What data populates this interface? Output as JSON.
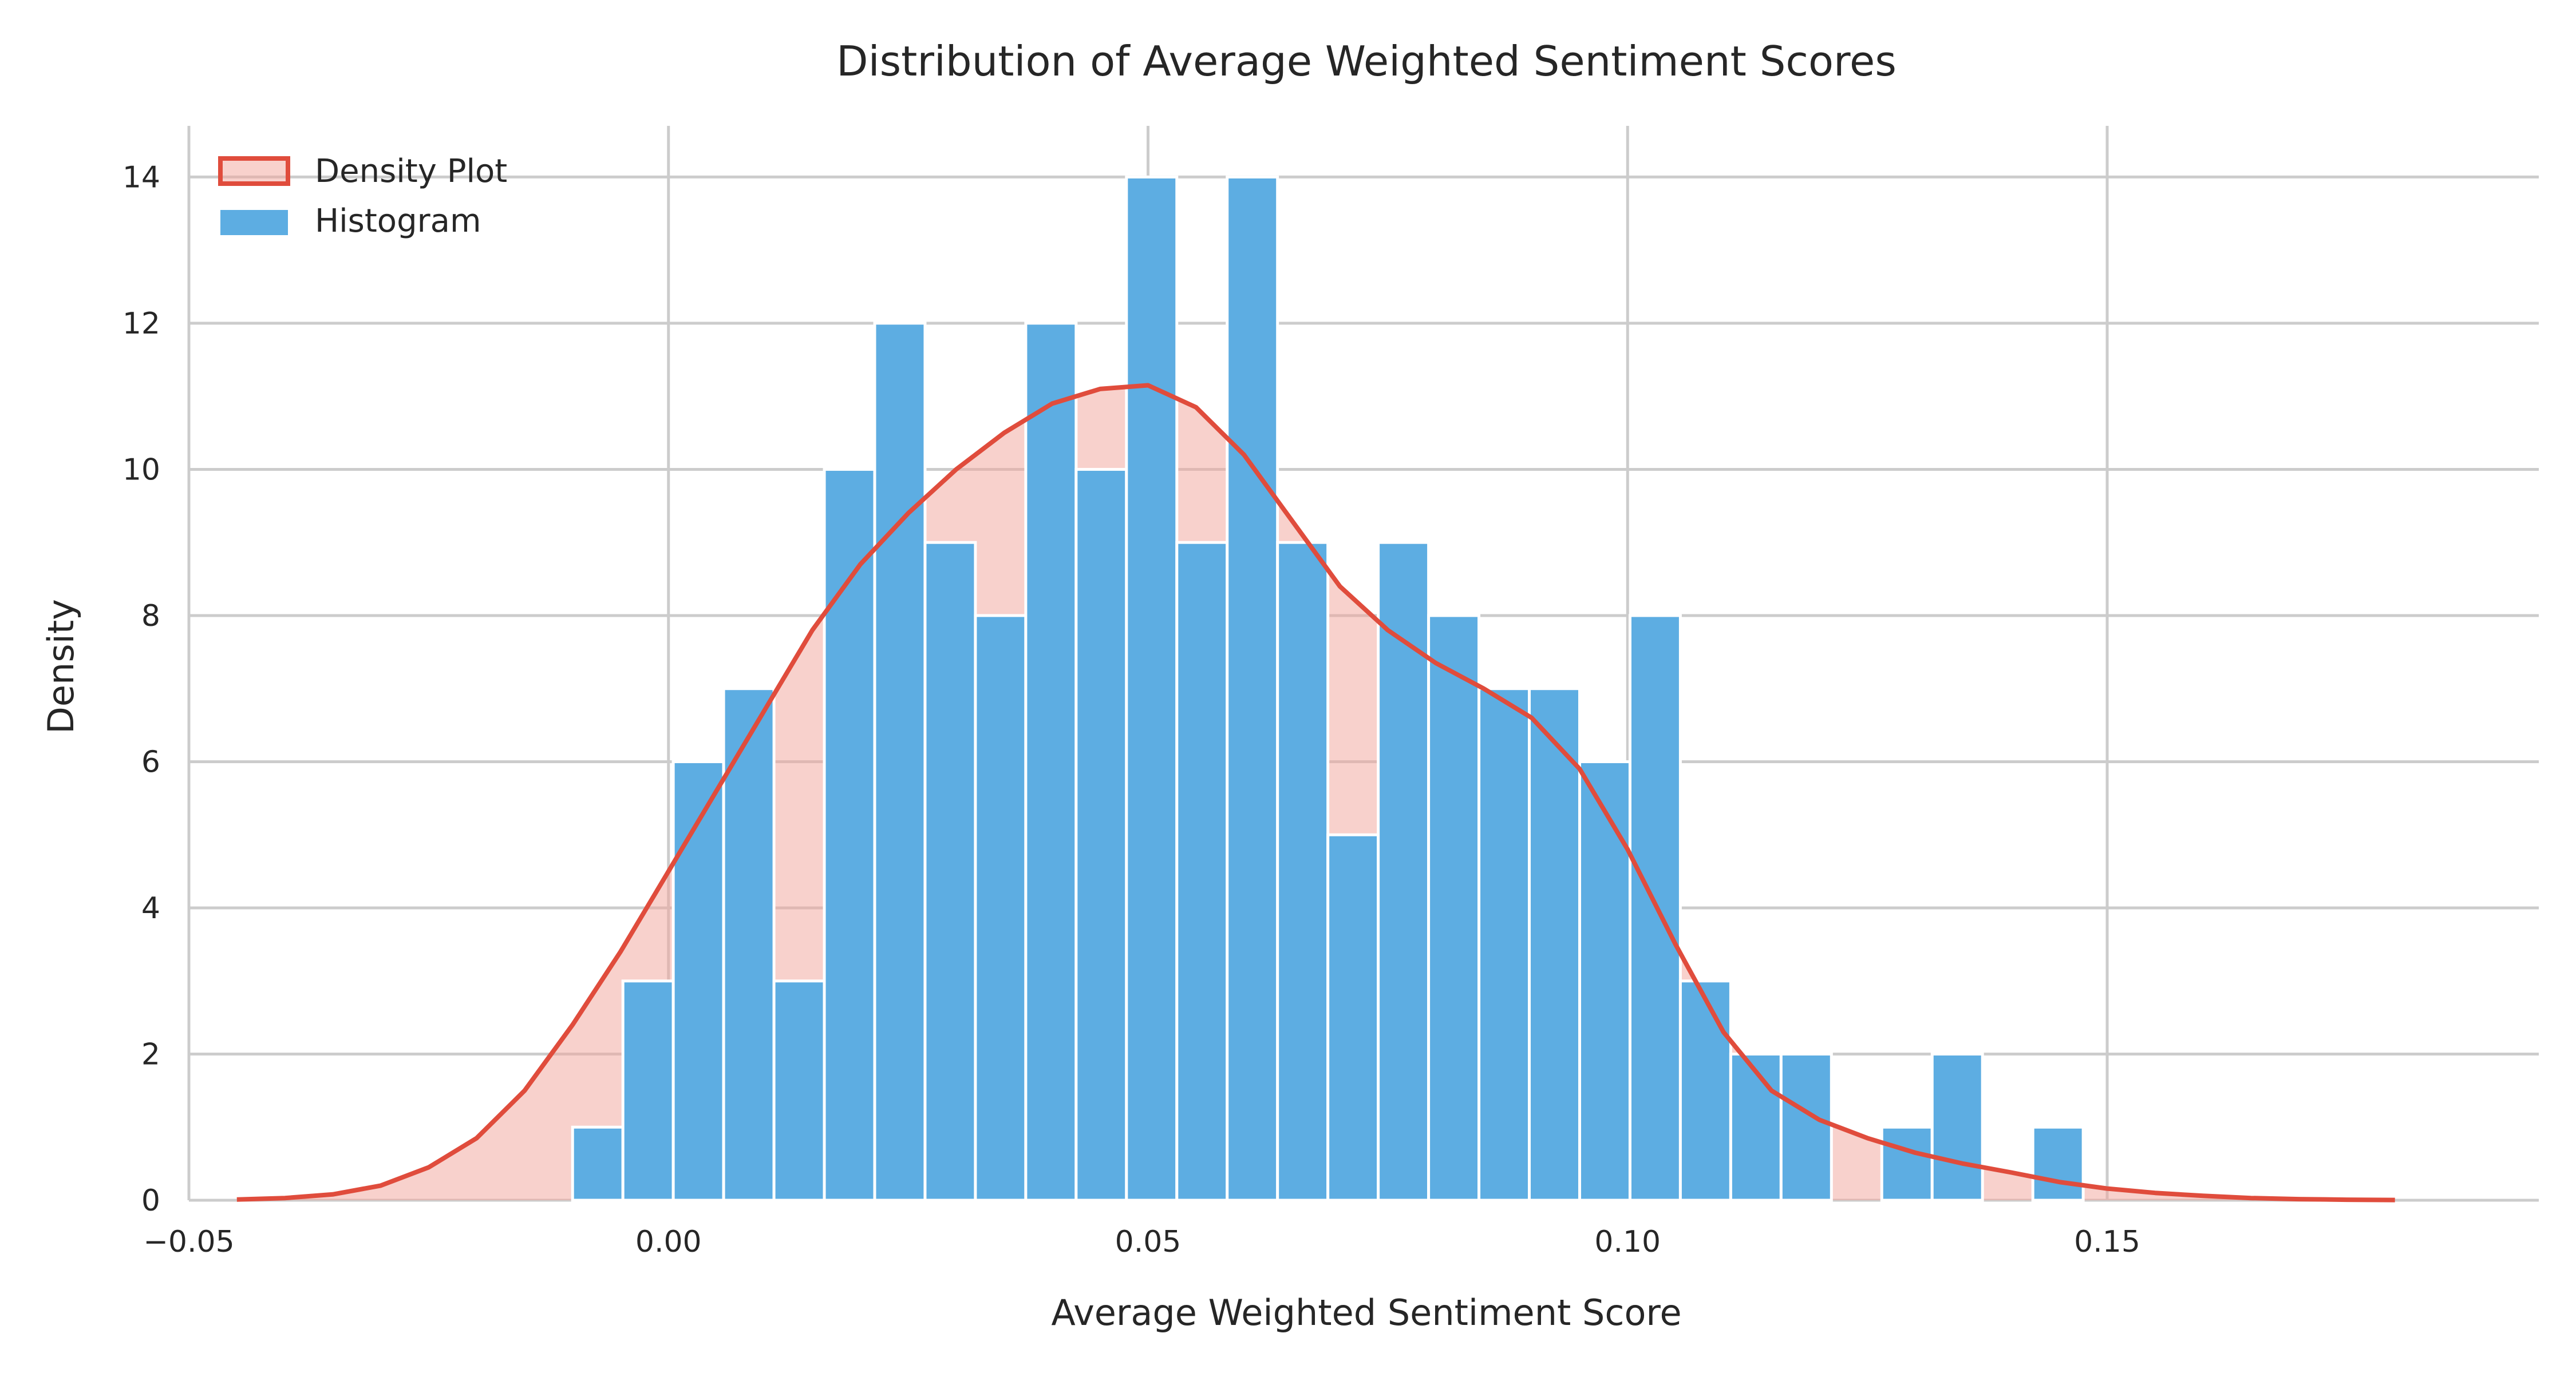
{
  "chart_data": {
    "type": "bar",
    "title": "Distribution of Average Weighted Sentiment Scores",
    "xlabel": "Average Weighted Sentiment Score",
    "ylabel": "Density",
    "xlim": [
      -0.05,
      0.195
    ],
    "ylim": [
      0,
      14.7
    ],
    "x_ticks": [
      -0.05,
      0.0,
      0.05,
      0.1,
      0.15
    ],
    "x_tick_labels": [
      "−0.05",
      "0.00",
      "0.05",
      "0.10",
      "0.15"
    ],
    "y_ticks": [
      0,
      2,
      4,
      6,
      8,
      10,
      12,
      14
    ],
    "y_tick_labels": [
      "0",
      "2",
      "4",
      "6",
      "8",
      "10",
      "12",
      "14"
    ],
    "grid": true,
    "legend": {
      "position": "top-left",
      "entries": [
        "Density Plot",
        "Histogram"
      ]
    },
    "colors": {
      "histogram": "#5DADE2",
      "density_line": "#E04C3C",
      "density_fill": "#F2A49A",
      "grid": "#cccccc"
    },
    "histogram": {
      "name": "Histogram",
      "bin_start": -0.01,
      "bin_width": 0.00525,
      "values": [
        1,
        3,
        6,
        7,
        3,
        10,
        12,
        9,
        8,
        12,
        10,
        14,
        9,
        14,
        9,
        5,
        9,
        8,
        7,
        7,
        6,
        8,
        3,
        2,
        2,
        0,
        1,
        2,
        0,
        1
      ]
    },
    "density": {
      "name": "Density Plot",
      "x": [
        -0.045,
        -0.04,
        -0.035,
        -0.03,
        -0.025,
        -0.02,
        -0.015,
        -0.01,
        -0.005,
        0.0,
        0.005,
        0.01,
        0.015,
        0.02,
        0.025,
        0.03,
        0.035,
        0.04,
        0.045,
        0.05,
        0.055,
        0.06,
        0.065,
        0.07,
        0.075,
        0.08,
        0.085,
        0.09,
        0.095,
        0.1,
        0.105,
        0.11,
        0.115,
        0.12,
        0.125,
        0.13,
        0.135,
        0.14,
        0.145,
        0.15,
        0.155,
        0.16,
        0.165,
        0.17,
        0.175,
        0.18
      ],
      "y": [
        0.01,
        0.03,
        0.08,
        0.2,
        0.45,
        0.85,
        1.5,
        2.4,
        3.4,
        4.5,
        5.6,
        6.7,
        7.8,
        8.7,
        9.4,
        10.0,
        10.5,
        10.9,
        11.1,
        11.15,
        10.85,
        10.2,
        9.3,
        8.4,
        7.8,
        7.35,
        7.0,
        6.6,
        5.9,
        4.8,
        3.5,
        2.3,
        1.5,
        1.1,
        0.85,
        0.65,
        0.5,
        0.38,
        0.25,
        0.16,
        0.1,
        0.06,
        0.03,
        0.015,
        0.007,
        0.003
      ]
    }
  }
}
